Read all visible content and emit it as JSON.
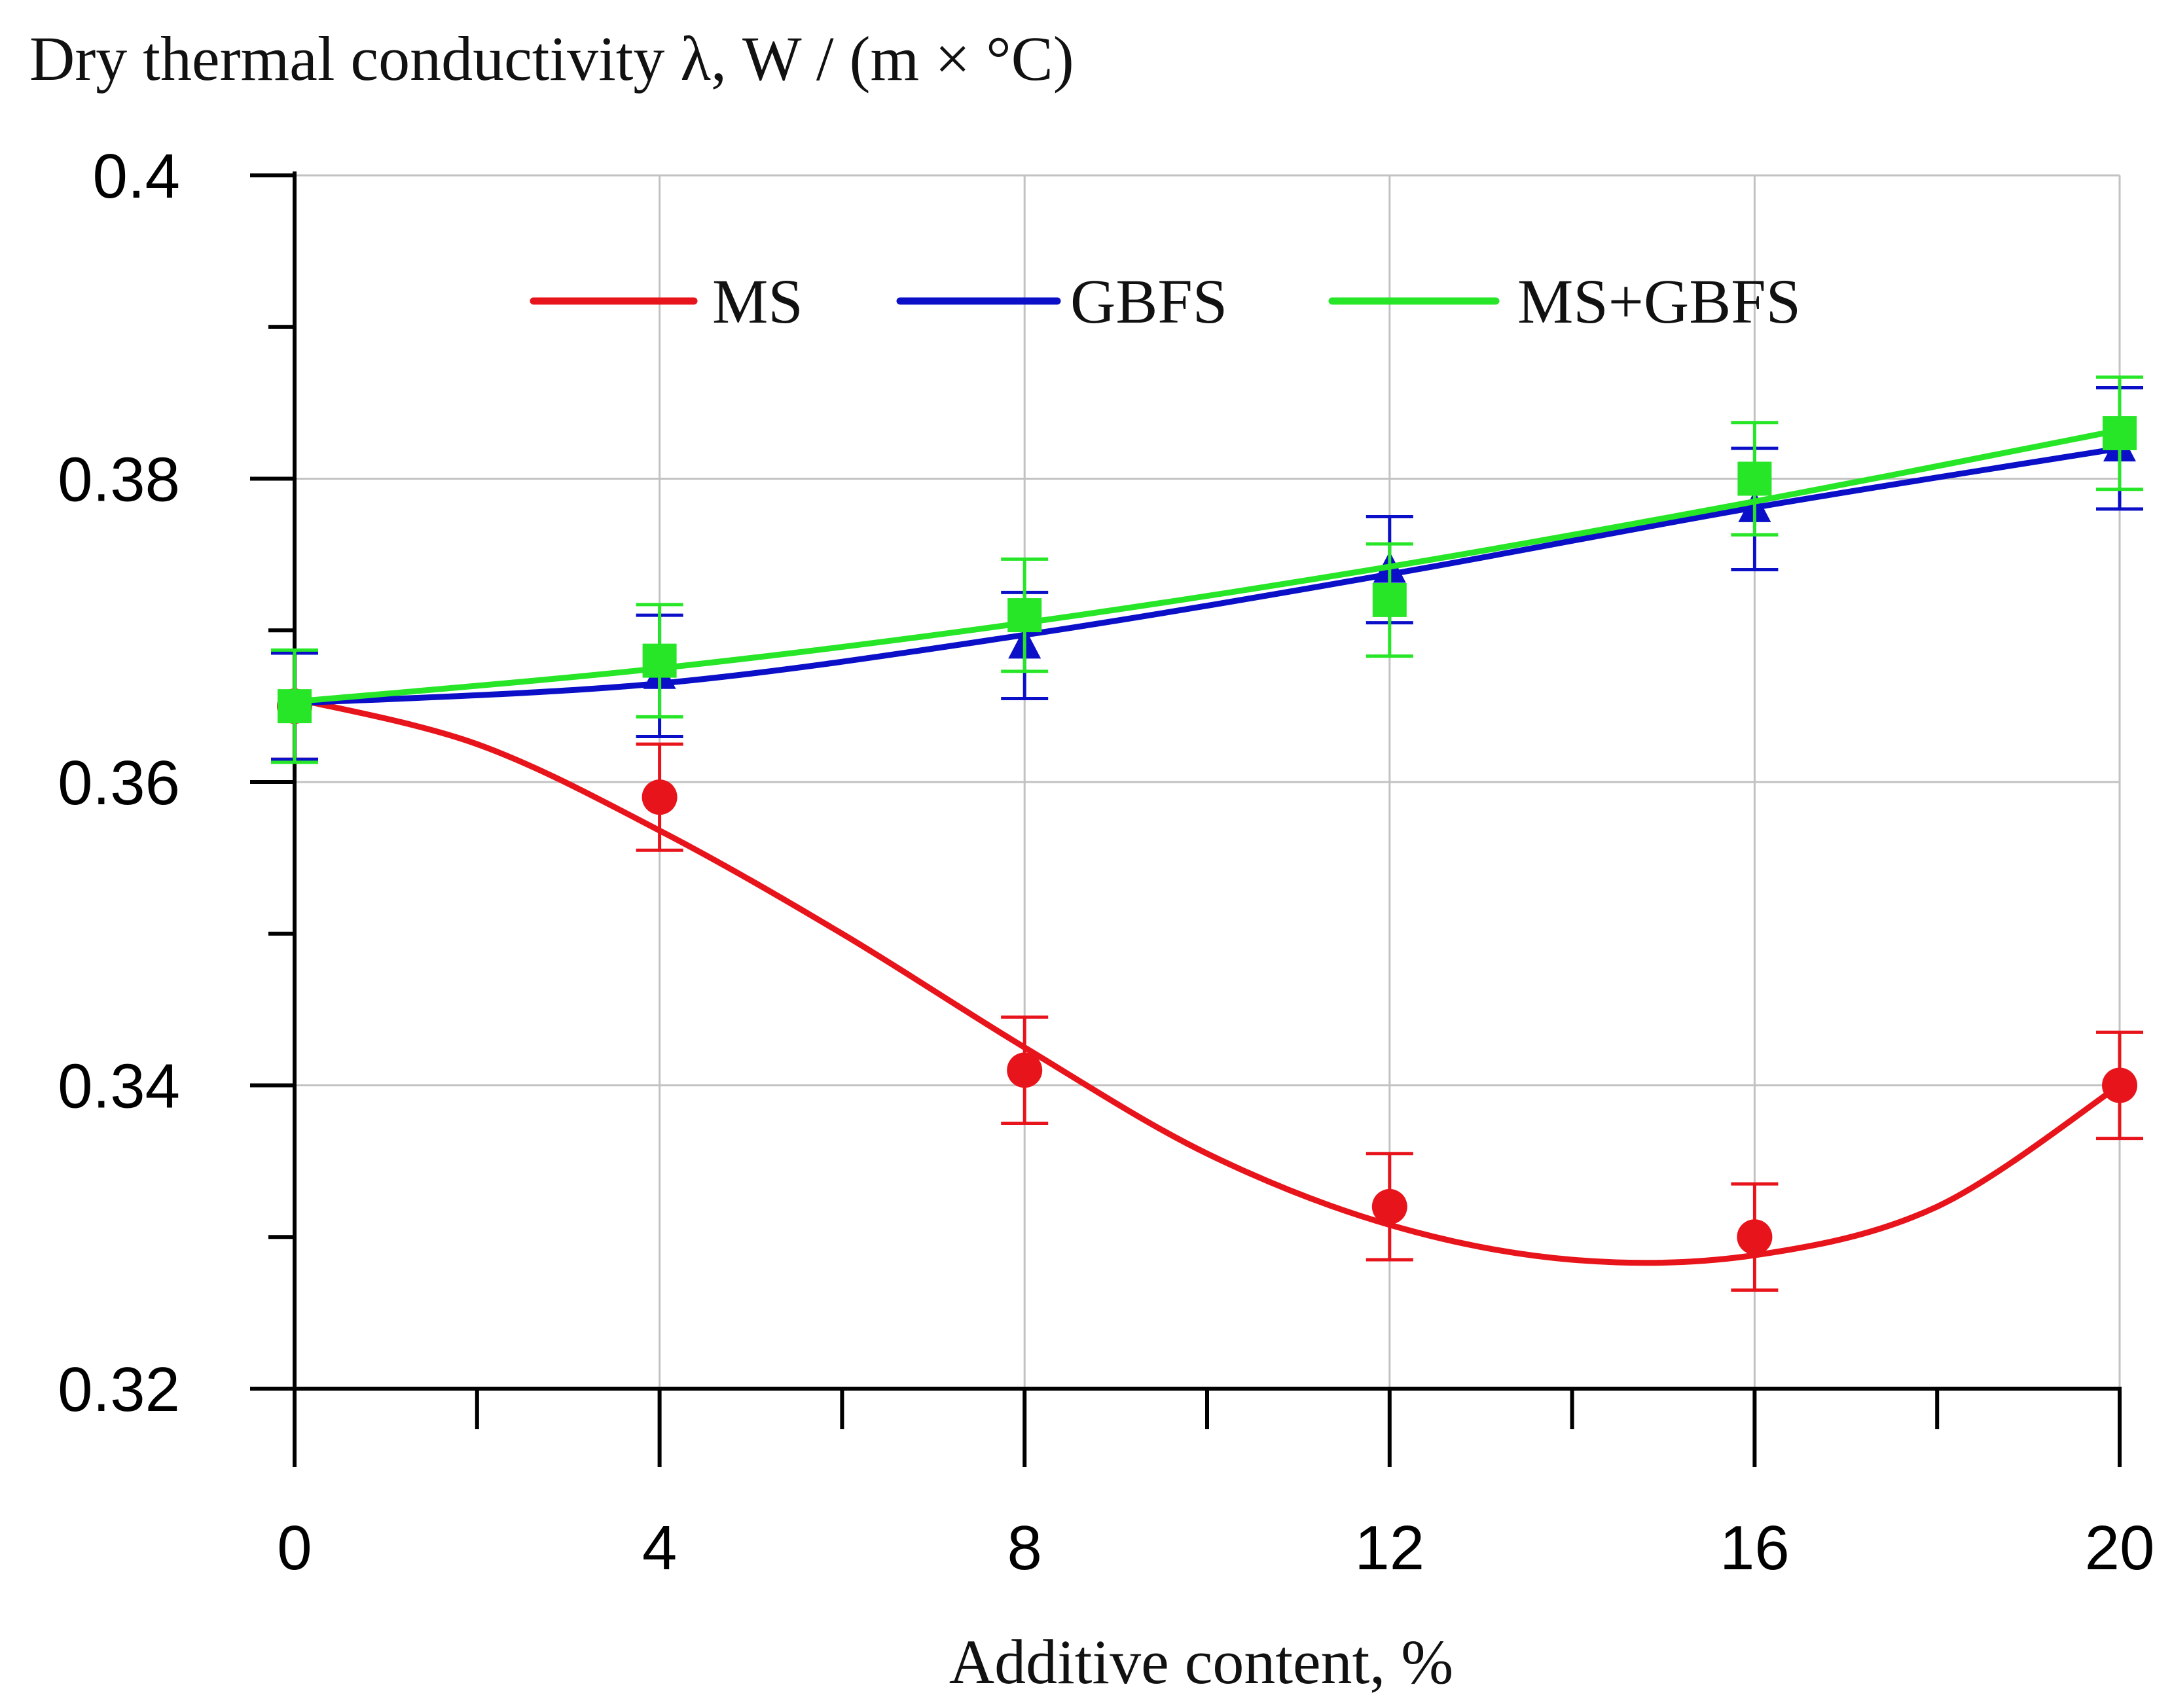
{
  "chart_data": {
    "type": "line",
    "ylabel": "Dry thermal conductivity λ, W / (m × °C)",
    "xlabel": "Additive content, %",
    "xlim": [
      0,
      20
    ],
    "ylim": [
      0.32,
      0.4
    ],
    "x_ticks_major": [
      0,
      4,
      8,
      12,
      16,
      20
    ],
    "x_tick_labels": [
      "0",
      "4",
      "8",
      "12",
      "16",
      "20"
    ],
    "x_ticks_minor": [
      2,
      6,
      10,
      14,
      18
    ],
    "y_ticks_major": [
      0.32,
      0.34,
      0.36,
      0.38,
      0.4
    ],
    "y_tick_labels": [
      "0.32",
      "0.34",
      "0.36",
      "0.38",
      "0.4"
    ],
    "y_ticks_minor": [
      0.33,
      0.35,
      0.37,
      0.39
    ],
    "grid": true,
    "legend_position": "top",
    "series": [
      {
        "name": "MS",
        "color": "#e8141b",
        "marker": "circle",
        "x": [
          0,
          4,
          8,
          12,
          16,
          20
        ],
        "y": [
          0.365,
          0.359,
          0.341,
          0.332,
          0.33,
          0.34
        ],
        "error": [
          0.0035,
          0.0035,
          0.0035,
          0.0035,
          0.0035,
          0.0035
        ],
        "fit_curve": [
          [
            0,
            0.3655
          ],
          [
            2,
            0.3625
          ],
          [
            4,
            0.3568
          ],
          [
            6,
            0.35
          ],
          [
            8,
            0.3425
          ],
          [
            10,
            0.3355
          ],
          [
            12,
            0.3308
          ],
          [
            14,
            0.3285
          ],
          [
            16,
            0.3288
          ],
          [
            18,
            0.332
          ],
          [
            20,
            0.34
          ]
        ]
      },
      {
        "name": "GBFS",
        "color": "#0b10c8",
        "marker": "triangle",
        "x": [
          0,
          4,
          8,
          12,
          16,
          20
        ],
        "y": [
          0.365,
          0.367,
          0.369,
          0.374,
          0.378,
          0.382
        ],
        "error": [
          0.0035,
          0.004,
          0.0035,
          0.0035,
          0.004,
          0.004
        ],
        "fit_curve": [
          [
            0,
            0.3652
          ],
          [
            4,
            0.3665
          ],
          [
            8,
            0.3697
          ],
          [
            12,
            0.3737
          ],
          [
            16,
            0.3781
          ],
          [
            20,
            0.382
          ]
        ]
      },
      {
        "name": "MS+GBFS",
        "color": "#27e627",
        "marker": "square",
        "x": [
          0,
          4,
          8,
          12,
          16,
          20
        ],
        "y": [
          0.365,
          0.368,
          0.371,
          0.372,
          0.38,
          0.383
        ],
        "error": [
          0.0037,
          0.0037,
          0.0037,
          0.0037,
          0.0037,
          0.0037
        ],
        "fit_curve": [
          [
            0,
            0.3653
          ],
          [
            4,
            0.3675
          ],
          [
            8,
            0.3705
          ],
          [
            12,
            0.3742
          ],
          [
            16,
            0.3785
          ],
          [
            20,
            0.3832
          ]
        ]
      }
    ]
  }
}
